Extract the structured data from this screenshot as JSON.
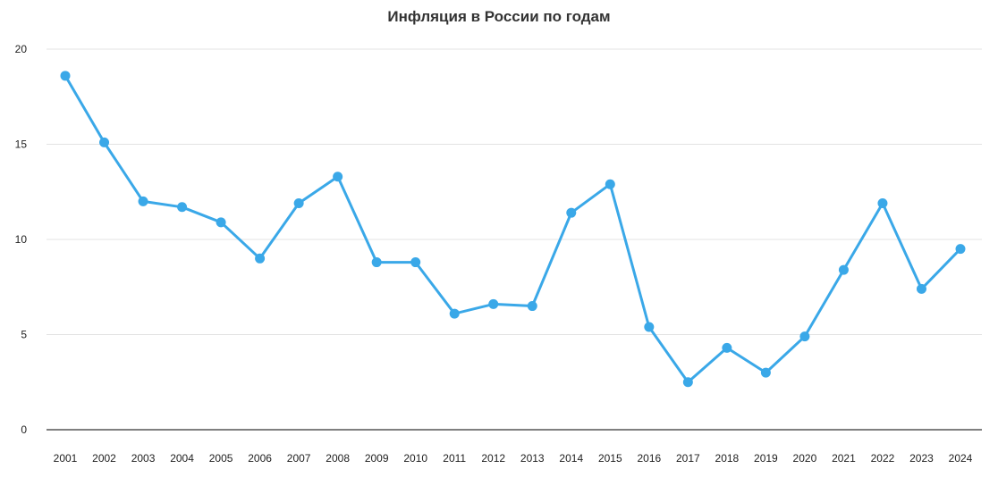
{
  "chart_data": {
    "type": "line",
    "title": "Инфляция в России по годам",
    "xlabel": "",
    "ylabel": "",
    "ylim": [
      0,
      20
    ],
    "yticks": [
      0,
      5,
      10,
      15,
      20
    ],
    "grid": true,
    "legend": "none",
    "x": [
      "2001",
      "2002",
      "2003",
      "2004",
      "2005",
      "2006",
      "2007",
      "2008",
      "2009",
      "2010",
      "2011",
      "2012",
      "2013",
      "2014",
      "2015",
      "2016",
      "2017",
      "2018",
      "2019",
      "2020",
      "2021",
      "2022",
      "2023",
      "2024"
    ],
    "series": [
      {
        "values": [
          18.6,
          15.1,
          12.0,
          11.7,
          10.9,
          9.0,
          11.9,
          13.3,
          8.8,
          8.8,
          6.1,
          6.6,
          6.5,
          11.4,
          12.9,
          5.4,
          2.5,
          4.3,
          3.0,
          4.9,
          8.4,
          11.9,
          7.4,
          9.5
        ],
        "color": "#3aa8e8"
      }
    ]
  }
}
